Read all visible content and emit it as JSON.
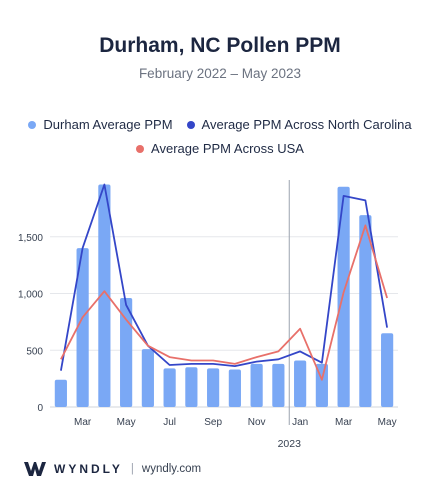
{
  "colors": {
    "durham": "#7aa8f5",
    "nc": "#3446c8",
    "usa": "#e8706a",
    "grid": "#e5e7eb",
    "axis_text": "#374151"
  },
  "footer": {
    "brand": "WYNDLY",
    "separator": "|",
    "site": "wyndly.com",
    "logo_icon": "wyndly-w-logo-icon"
  },
  "chart_data": {
    "type": "bar",
    "title": "Durham, NC Pollen PPM",
    "subtitle": "February 2022 – May 2023",
    "xlabel": "",
    "ylabel": "",
    "ylim": [
      0,
      2000
    ],
    "yticks": [
      0,
      500,
      1000,
      1500
    ],
    "ytick_labels": [
      "0",
      "500",
      "1,000",
      "1,500"
    ],
    "grid": true,
    "legend": "top-center",
    "categories": [
      "Feb 2022",
      "Mar 2022",
      "Apr 2022",
      "May 2022",
      "Jun 2022",
      "Jul 2022",
      "Aug 2022",
      "Sep 2022",
      "Oct 2022",
      "Nov 2022",
      "Dec 2022",
      "Jan 2023",
      "Feb 2023",
      "Mar 2023",
      "Apr 2023",
      "May 2023"
    ],
    "x_tick_labels": [
      "",
      "Mar",
      "",
      "May",
      "",
      "Jul",
      "",
      "Sep",
      "",
      "Nov",
      "",
      "Jan",
      "",
      "Mar",
      "",
      "May"
    ],
    "year_marker": {
      "label": "2023",
      "between": [
        "Dec 2022",
        "Jan 2023"
      ]
    },
    "series": [
      {
        "name": "Durham Average PPM",
        "kind": "bar",
        "values": [
          240,
          1400,
          1960,
          960,
          510,
          340,
          350,
          340,
          330,
          380,
          380,
          410,
          380,
          1940,
          1690,
          650
        ]
      },
      {
        "name": "Average PPM Across North Carolina",
        "kind": "line",
        "values": [
          320,
          1400,
          1960,
          900,
          540,
          370,
          380,
          380,
          360,
          400,
          420,
          490,
          390,
          1860,
          1820,
          700
        ]
      },
      {
        "name": "Average PPM Across USA",
        "kind": "line",
        "values": [
          420,
          790,
          1020,
          770,
          540,
          440,
          410,
          410,
          380,
          440,
          490,
          690,
          240,
          1010,
          1600,
          960
        ]
      }
    ]
  }
}
